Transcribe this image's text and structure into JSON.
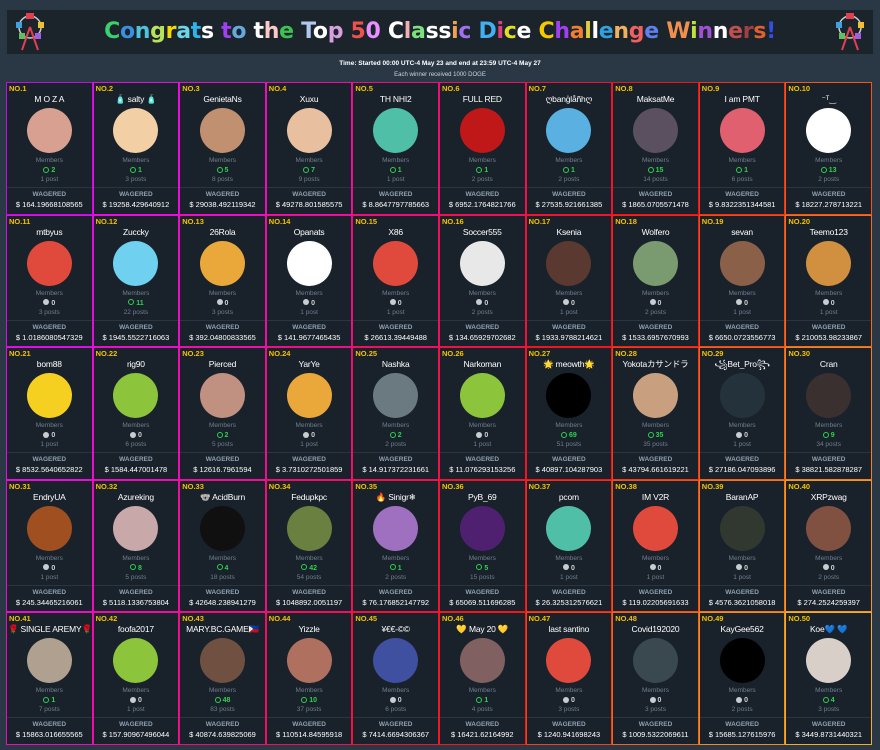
{
  "header": {
    "title": "Congrats to the Top 50 Classic Dice Challenge Winners!",
    "title_colors": [
      "#3bd16f",
      "#3b8fe0",
      "#4fc3d9",
      "#b7e35a",
      "#f5d800",
      "#6dd6e8",
      "#2bb5ef",
      "#ffffff",
      "#a040f0",
      "#6ad",
      "#ffffff",
      "#ffc8c8",
      "#3fc050",
      "#b0c8f0",
      "#ffffff",
      "#d8a0e0",
      "#f05050",
      "#e890ff",
      "#ffffff",
      "#f0b0b0",
      "#7ce27c",
      "#ffffff",
      "#ffffff",
      "#f0a050",
      "#a070f0",
      "#40b0f0",
      "#e04080",
      "#e0e020",
      "#ffffff",
      "#f5c800",
      "#a040f0",
      "#f08030",
      "#e0d040",
      "#ffffff",
      "#30a0e0",
      "#f0b060",
      "#f06060",
      "#6080f0",
      "#f09050",
      "#c0e040",
      "#a050d0",
      "#ffffff",
      "#c05050",
      "#a04040",
      "#e06030",
      "#3050e0",
      "#30c0a0",
      "#c0e020",
      "#60e020",
      "#f02050"
    ],
    "time_line": "Time: Started 00:00 UTC-4 May 23 and end at 23:59 UTC-4 May 27",
    "reward_line": "Each winner received 1000 DOGE",
    "icon": "ferris-wheel-icon"
  },
  "labels": {
    "members": "Members",
    "wagered": "WAGERED"
  },
  "colors": {
    "online": "#2fd14f",
    "rank": "#f5c000"
  },
  "winners": [
    {
      "rank": "NO.1",
      "name": "M O Z A",
      "online": 2,
      "posts": "1 post",
      "wagered": "$ 164.19668108565",
      "avatar": "#d8a090"
    },
    {
      "rank": "NO.2",
      "name": "🧴 salty 🧴",
      "online": 1,
      "posts": "3 posts",
      "wagered": "$ 19258.429640912",
      "avatar": "#f2cfa4"
    },
    {
      "rank": "NO.3",
      "name": "GenietaNs",
      "online": 5,
      "posts": "8 posts",
      "wagered": "$ 29038.492119342",
      "avatar": "#c09070"
    },
    {
      "rank": "NO.4",
      "name": "Xuxu",
      "online": 7,
      "posts": "9 posts",
      "wagered": "$ 49278.801585575",
      "avatar": "#e8c0a0"
    },
    {
      "rank": "NO.5",
      "name": "TH NHI2",
      "online": 1,
      "posts": "1 post",
      "wagered": "$ 8.8647797785663",
      "avatar": "#4fbfa8"
    },
    {
      "rank": "NO.6",
      "name": "FULL RED",
      "online": 1,
      "posts": "2 posts",
      "wagered": "$ 6952.1764821766",
      "avatar": "#c01818"
    },
    {
      "rank": "NO.7",
      "name": "ღbanģlåñhღ",
      "online": 1,
      "posts": "2 posts",
      "wagered": "$ 27535.921661385",
      "avatar": "#5ab0e0"
    },
    {
      "rank": "NO.8",
      "name": "MaksatMe",
      "online": 15,
      "posts": "14 posts",
      "wagered": "$ 1865.0705571478",
      "avatar": "#5a5060"
    },
    {
      "rank": "NO.9",
      "name": "I am PMT",
      "online": 1,
      "posts": "6 posts",
      "wagered": "$ 9.8322351344581",
      "avatar": "#e06070"
    },
    {
      "rank": "NO.10",
      "name": "⁻ᵀ‿",
      "online": 13,
      "posts": "2 posts",
      "wagered": "$ 18227.278713221",
      "avatar": "#ffffff"
    },
    {
      "rank": "NO.11",
      "name": "mtbyus",
      "online": 0,
      "posts": "3 posts",
      "wagered": "$ 1.0186080547329",
      "avatar": "#e04a3c"
    },
    {
      "rank": "NO.12",
      "name": "Zuccky",
      "online": 11,
      "posts": "22 posts",
      "wagered": "$ 1945.5522716063",
      "avatar": "#70d0f0"
    },
    {
      "rank": "NO.13",
      "name": "26Rola",
      "online": 0,
      "posts": "3 posts",
      "wagered": "$ 392.04800833565",
      "avatar": "#eaa83a"
    },
    {
      "rank": "NO.14",
      "name": "Opanats",
      "online": 0,
      "posts": "1 post",
      "wagered": "$ 141.9677465435",
      "avatar": "#ffffff"
    },
    {
      "rank": "NO.15",
      "name": "X86",
      "online": 0,
      "posts": "1 post",
      "wagered": "$ 26613.39449488",
      "avatar": "#e04a3c"
    },
    {
      "rank": "NO.16",
      "name": "Soccer555",
      "online": 0,
      "posts": "2 posts",
      "wagered": "$ 134.65929702682",
      "avatar": "#e8e8e8"
    },
    {
      "rank": "NO.17",
      "name": "Ksenia",
      "online": 0,
      "posts": "1 post",
      "wagered": "$ 1933.9788214621",
      "avatar": "#5a3a30"
    },
    {
      "rank": "NO.18",
      "name": "Wolfero",
      "online": 0,
      "posts": "2 posts",
      "wagered": "$ 1533.6957670993",
      "avatar": "#7a9a70"
    },
    {
      "rank": "NO.19",
      "name": "sevan",
      "online": 0,
      "posts": "1 post",
      "wagered": "$ 6650.0723556773",
      "avatar": "#8a6048"
    },
    {
      "rank": "NO.20",
      "name": "Teemo123",
      "online": 0,
      "posts": "1 post",
      "wagered": "$ 210053.98233867",
      "avatar": "#d09040"
    },
    {
      "rank": "NO.21",
      "name": "bom88",
      "online": 0,
      "posts": "1 post",
      "wagered": "$ 8532.5640652822",
      "avatar": "#f5d020"
    },
    {
      "rank": "NO.22",
      "name": "rig90",
      "online": 0,
      "posts": "6 posts",
      "wagered": "$ 1584.447001478",
      "avatar": "#8cc43c"
    },
    {
      "rank": "NO.23",
      "name": "Pierced",
      "online": 2,
      "posts": "5 posts",
      "wagered": "$ 12616.7961594",
      "avatar": "#c09080"
    },
    {
      "rank": "NO.24",
      "name": "YarYe",
      "online": 0,
      "posts": "1 post",
      "wagered": "$ 3.7310272501859",
      "avatar": "#eaa83a"
    },
    {
      "rank": "NO.25",
      "name": "Nashka",
      "online": 2,
      "posts": "2 posts",
      "wagered": "$ 14.917372231661",
      "avatar": "#6a7a80"
    },
    {
      "rank": "NO.26",
      "name": "Narkoman",
      "online": 0,
      "posts": "1 post",
      "wagered": "$ 11.076293153256",
      "avatar": "#8cc43c"
    },
    {
      "rank": "NO.27",
      "name": "🌟 meowth🌟",
      "online": 69,
      "posts": "51 posts",
      "wagered": "$ 40897.104287903",
      "avatar": "#000000"
    },
    {
      "rank": "NO.28",
      "name": "Yokotaカサンドラ",
      "online": 35,
      "posts": "35 posts",
      "wagered": "$ 43794.661619221",
      "avatar": "#c8a080"
    },
    {
      "rank": "NO.29",
      "name": "꧁Bet_Pro꧂",
      "online": 0,
      "posts": "1 post",
      "wagered": "$ 27186.047093896",
      "avatar": "#24323c"
    },
    {
      "rank": "NO.30",
      "name": "Cran",
      "online": 9,
      "posts": "34 posts",
      "wagered": "$ 38821.582878287",
      "avatar": "#3a3030"
    },
    {
      "rank": "NO.31",
      "name": "EndryUA",
      "online": 0,
      "posts": "1 post",
      "wagered": "$ 245.34465216061",
      "avatar": "#a05020"
    },
    {
      "rank": "NO.32",
      "name": "Azureking",
      "online": 8,
      "posts": "5 posts",
      "wagered": "$ 5118.1336753804",
      "avatar": "#c8a8a8"
    },
    {
      "rank": "NO.33",
      "name": "🐨 AcidBurn",
      "online": 4,
      "posts": "18 posts",
      "wagered": "$ 42648.238941279",
      "avatar": "#101010"
    },
    {
      "rank": "NO.34",
      "name": "Fedupkpc",
      "online": 42,
      "posts": "54 posts",
      "wagered": "$ 1048892.0051197",
      "avatar": "#6a8040"
    },
    {
      "rank": "NO.35",
      "name": "🔥 Sinigr❄",
      "online": 1,
      "posts": "2 posts",
      "wagered": "$ 76.176852147792",
      "avatar": "#a070c0"
    },
    {
      "rank": "NO.36",
      "name": "PyB_69",
      "online": 5,
      "posts": "15 posts",
      "wagered": "$ 65069.511696285",
      "avatar": "#502070"
    },
    {
      "rank": "NO.37",
      "name": "pcom",
      "online": 0,
      "posts": "1 post",
      "wagered": "$ 26.325312576621",
      "avatar": "#4fbfa8"
    },
    {
      "rank": "NO.38",
      "name": "IM V2R",
      "online": 0,
      "posts": "1 post",
      "wagered": "$ 119.02205691633",
      "avatar": "#e04a3c"
    },
    {
      "rank": "NO.39",
      "name": "BaranAP",
      "online": 0,
      "posts": "1 post",
      "wagered": "$ 4576.3621058018",
      "avatar": "#303830"
    },
    {
      "rank": "NO.40",
      "name": "XRPzwag",
      "online": 0,
      "posts": "2 posts",
      "wagered": "$ 274.2524259397",
      "avatar": "#805040"
    },
    {
      "rank": "NO.41",
      "name": "🌹 SINGLE AREMY🌹",
      "online": 1,
      "posts": "7 posts",
      "wagered": "$ 15863.016655565",
      "avatar": "#b0a090"
    },
    {
      "rank": "NO.42",
      "name": "foofa2017",
      "online": 0,
      "posts": "1 post",
      "wagered": "$ 157.90967496044",
      "avatar": "#8cc43c"
    },
    {
      "rank": "NO.43",
      "name": "MARY.BC.GAME🇵🇭",
      "online": 48,
      "posts": "83 posts",
      "wagered": "$ 40874.639825069",
      "avatar": "#705040"
    },
    {
      "rank": "NO.44",
      "name": "Yizzle",
      "online": 10,
      "posts": "37 posts",
      "wagered": "$ 110514.84595918",
      "avatar": "#b07060"
    },
    {
      "rank": "NO.45",
      "name": "¥€€-©©",
      "online": 0,
      "posts": "6 posts",
      "wagered": "$ 7414.6694306367",
      "avatar": "#4050a0"
    },
    {
      "rank": "NO.46",
      "name": "💛 May 20 💛",
      "online": 1,
      "posts": "4 posts",
      "wagered": "$ 16421.62164992",
      "avatar": "#806060"
    },
    {
      "rank": "NO.47",
      "name": "last santino",
      "online": 0,
      "posts": "3 posts",
      "wagered": "$ 1240.941698243",
      "avatar": "#e04a3c"
    },
    {
      "rank": "NO.48",
      "name": "Covid192020",
      "online": 0,
      "posts": "3 posts",
      "wagered": "$ 1009.5322069611",
      "avatar": "#3a4850"
    },
    {
      "rank": "NO.49",
      "name": "KayGee562",
      "online": 0,
      "posts": "2 posts",
      "wagered": "$ 15685.127615976",
      "avatar": "#000000"
    },
    {
      "rank": "NO.50",
      "name": "Koe💙 💙",
      "online": 4,
      "posts": "3 posts",
      "wagered": "$ 3449.8731440321",
      "avatar": "#d8d0c8"
    }
  ]
}
